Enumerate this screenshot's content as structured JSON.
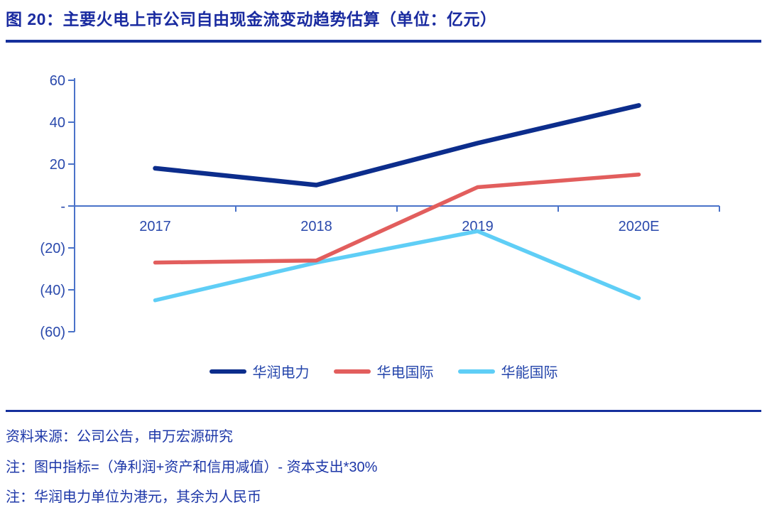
{
  "title": "图 20：主要火电上市公司自由现金流变动趋势估算（单位：亿元）",
  "chart_data": {
    "type": "line",
    "title": "主要火电上市公司自由现金流变动趋势估算",
    "unit": "亿元",
    "categories": [
      "2017",
      "2018",
      "2019",
      "2020E"
    ],
    "series": [
      {
        "name": "华润电力",
        "color": "#0C2D8C",
        "values": [
          18,
          10,
          30,
          48
        ]
      },
      {
        "name": "华电国际",
        "color": "#E25E5D",
        "values": [
          -27,
          -26,
          9,
          15
        ]
      },
      {
        "name": "华能国际",
        "color": "#5FCEF6",
        "values": [
          -45,
          -27,
          -12,
          -44
        ]
      }
    ],
    "ylim": [
      -60,
      60
    ],
    "ytick_values": [
      60,
      40,
      20,
      0,
      -20,
      -40,
      -60
    ],
    "ytick_labels": [
      "60",
      "40",
      "20",
      "-",
      "(20)",
      "(40)",
      "(60)"
    ],
    "xlabel": "",
    "ylabel": "",
    "grid": false,
    "legend_position": "bottom",
    "axis_color": "#4A72C8",
    "label_color": "#2A49AC"
  },
  "footer": {
    "source": "资料来源：公司公告，申万宏源研究",
    "note1": "注：图中指标=（净利润+资产和信用减值）- 资本支出*30%",
    "note2": "注：华润电力单位为港元，其余为人民币"
  }
}
